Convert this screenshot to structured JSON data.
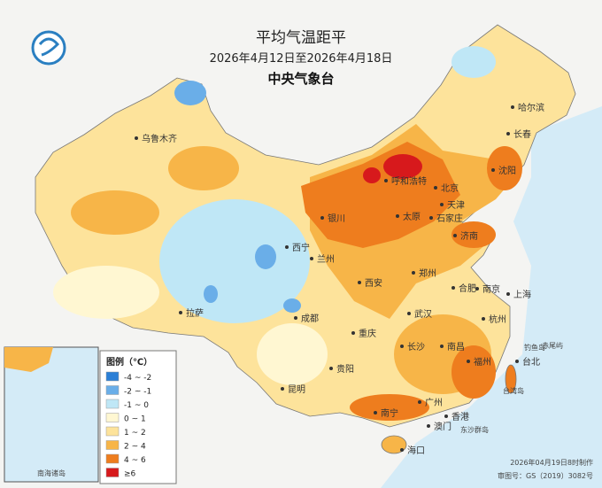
{
  "header": {
    "title": "平均气温距平",
    "date_range": "2026年4月12日至2026年4月18日",
    "agency": "中央气象台"
  },
  "legend": {
    "title": "图例（℃）",
    "items": [
      {
        "label": "-4 ~ -2",
        "color": "#2b7fd6"
      },
      {
        "label": "-2 ~ -1",
        "color": "#6aaee8"
      },
      {
        "label": "-1 ~ 0",
        "color": "#bfe7f6"
      },
      {
        "label": "0 ~ 1",
        "color": "#fff7d2"
      },
      {
        "label": "1 ~ 2",
        "color": "#fde39b"
      },
      {
        "label": "2 ~ 4",
        "color": "#f7b548"
      },
      {
        "label": "4 ~ 6",
        "color": "#ee7d1e"
      },
      {
        "label": "≥6",
        "color": "#d7191c"
      }
    ]
  },
  "cities": [
    "乌鲁木齐",
    "哈尔滨",
    "长春",
    "沈阳",
    "呼和浩特",
    "北京",
    "天津",
    "银川",
    "太原",
    "石家庄",
    "济南",
    "西宁",
    "兰州",
    "西安",
    "郑州",
    "合肥",
    "南京",
    "上海",
    "拉萨",
    "成都",
    "武汉",
    "杭州",
    "重庆",
    "长沙",
    "南昌",
    "福州",
    "台北",
    "贵阳",
    "昆明",
    "南宁",
    "广州",
    "香港",
    "澳门",
    "海口"
  ],
  "islands": [
    "台湾岛",
    "东沙群岛",
    "钓鱼岛",
    "赤尾屿"
  ],
  "inset": {
    "label": "南海诸岛"
  },
  "footer": {
    "made": "2026年04月19日8时制作",
    "approval": "审图号：GS（2019）3082号"
  }
}
